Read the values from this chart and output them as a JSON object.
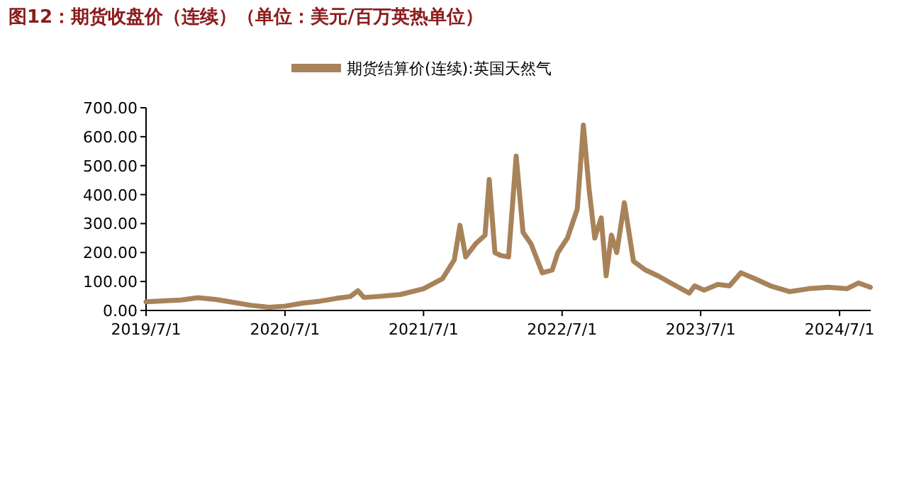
{
  "chart_data": {
    "type": "line",
    "title": "图12：期货收盘价（连续）（单位：美元/百万英热单位）",
    "x": [
      "2019-07-01",
      "2019-08-15",
      "2019-10-01",
      "2019-11-15",
      "2020-01-01",
      "2020-02-15",
      "2020-04-01",
      "2020-05-20",
      "2020-07-01",
      "2020-08-15",
      "2020-10-01",
      "2020-11-15",
      "2020-12-20",
      "2021-01-09",
      "2021-01-25",
      "2021-03-01",
      "2021-05-01",
      "2021-07-01",
      "2021-08-20",
      "2021-09-20",
      "2021-10-05",
      "2021-10-20",
      "2021-11-15",
      "2021-12-10",
      "2021-12-21",
      "2022-01-05",
      "2022-01-20",
      "2022-02-10",
      "2022-03-02",
      "2022-03-20",
      "2022-04-10",
      "2022-05-10",
      "2022-06-05",
      "2022-06-20",
      "2022-07-15",
      "2022-08-10",
      "2022-08-26",
      "2022-09-10",
      "2022-09-25",
      "2022-10-12",
      "2022-10-25",
      "2022-11-08",
      "2022-11-22",
      "2022-12-12",
      "2023-01-05",
      "2023-02-05",
      "2023-03-10",
      "2023-04-20",
      "2023-06-01",
      "2023-06-15",
      "2023-07-10",
      "2023-08-15",
      "2023-09-15",
      "2023-10-15",
      "2023-11-20",
      "2024-01-01",
      "2024-02-20",
      "2024-04-10",
      "2024-06-01",
      "2024-07-20",
      "2024-08-20",
      "2024-09-20"
    ],
    "series": [
      {
        "name": "期货结算价(连续):英国天然气",
        "color": "#a8835a",
        "values": [
          30,
          33,
          36,
          44,
          38,
          28,
          18,
          11,
          15,
          25,
          32,
          42,
          48,
          68,
          45,
          48,
          55,
          75,
          110,
          175,
          294,
          185,
          230,
          260,
          452,
          200,
          190,
          185,
          533,
          270,
          230,
          130,
          140,
          200,
          250,
          350,
          640,
          420,
          250,
          320,
          120,
          260,
          200,
          372,
          170,
          140,
          120,
          90,
          60,
          85,
          70,
          90,
          85,
          130,
          110,
          85,
          65,
          75,
          80,
          75,
          95,
          80
        ]
      }
    ],
    "xlim": [
      "2019-07-01",
      "2024-09-21"
    ],
    "xticks": [
      {
        "value": "2019-07-01",
        "label": "2019/7/1"
      },
      {
        "value": "2020-07-01",
        "label": "2020/7/1"
      },
      {
        "value": "2021-07-01",
        "label": "2021/7/1"
      },
      {
        "value": "2022-07-01",
        "label": "2022/7/1"
      },
      {
        "value": "2023-07-01",
        "label": "2023/7/1"
      },
      {
        "value": "2024-07-01",
        "label": "2024/7/1"
      }
    ],
    "ylim": [
      0,
      700
    ],
    "yticks": [
      {
        "value": 0,
        "label": "0.00"
      },
      {
        "value": 100,
        "label": "100.00"
      },
      {
        "value": 200,
        "label": "200.00"
      },
      {
        "value": 300,
        "label": "300.00"
      },
      {
        "value": 400,
        "label": "400.00"
      },
      {
        "value": 500,
        "label": "500.00"
      },
      {
        "value": 600,
        "label": "600.00"
      },
      {
        "value": 700,
        "label": "700.00"
      }
    ],
    "legend": "top",
    "grid": false,
    "line_style": "solid",
    "marker": "none"
  }
}
